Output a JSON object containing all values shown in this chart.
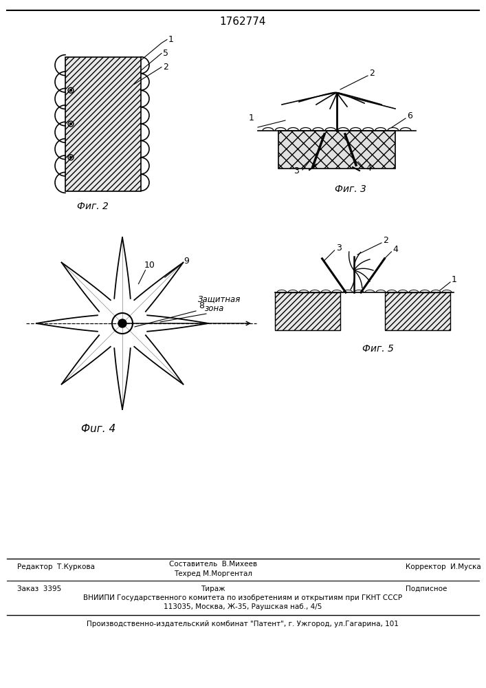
{
  "title": "1762774",
  "bg_color": "#ffffff",
  "line_color": "#000000",
  "fig2_label": "Фиг. 2",
  "fig3_label": "Фиг. 3",
  "fig4_label": "Фuг. 4",
  "fig5_label": "Фиг. 5",
  "footer_editor": "Редактор  Т.Куркова",
  "footer_compiler": "Составитель  В.Михеев",
  "footer_techred": "Техред М.Моргентал",
  "footer_corrector": "Корректор  И.Муска",
  "footer_order": "Заказ  3395",
  "footer_tirazh": "Тираж",
  "footer_podpisnoe": "Подписное",
  "footer_vniiipi": "ВНИИПИ Государственного комитета по изобретениям и открытиям при ГКНТ СССР",
  "footer_address": "113035, Москва, Ж-35, Раушская наб., 4/5",
  "footer_patent": "Производственно-издательский комбинат \"Патент\", г. Ужгород, ул.Гагарина, 101"
}
